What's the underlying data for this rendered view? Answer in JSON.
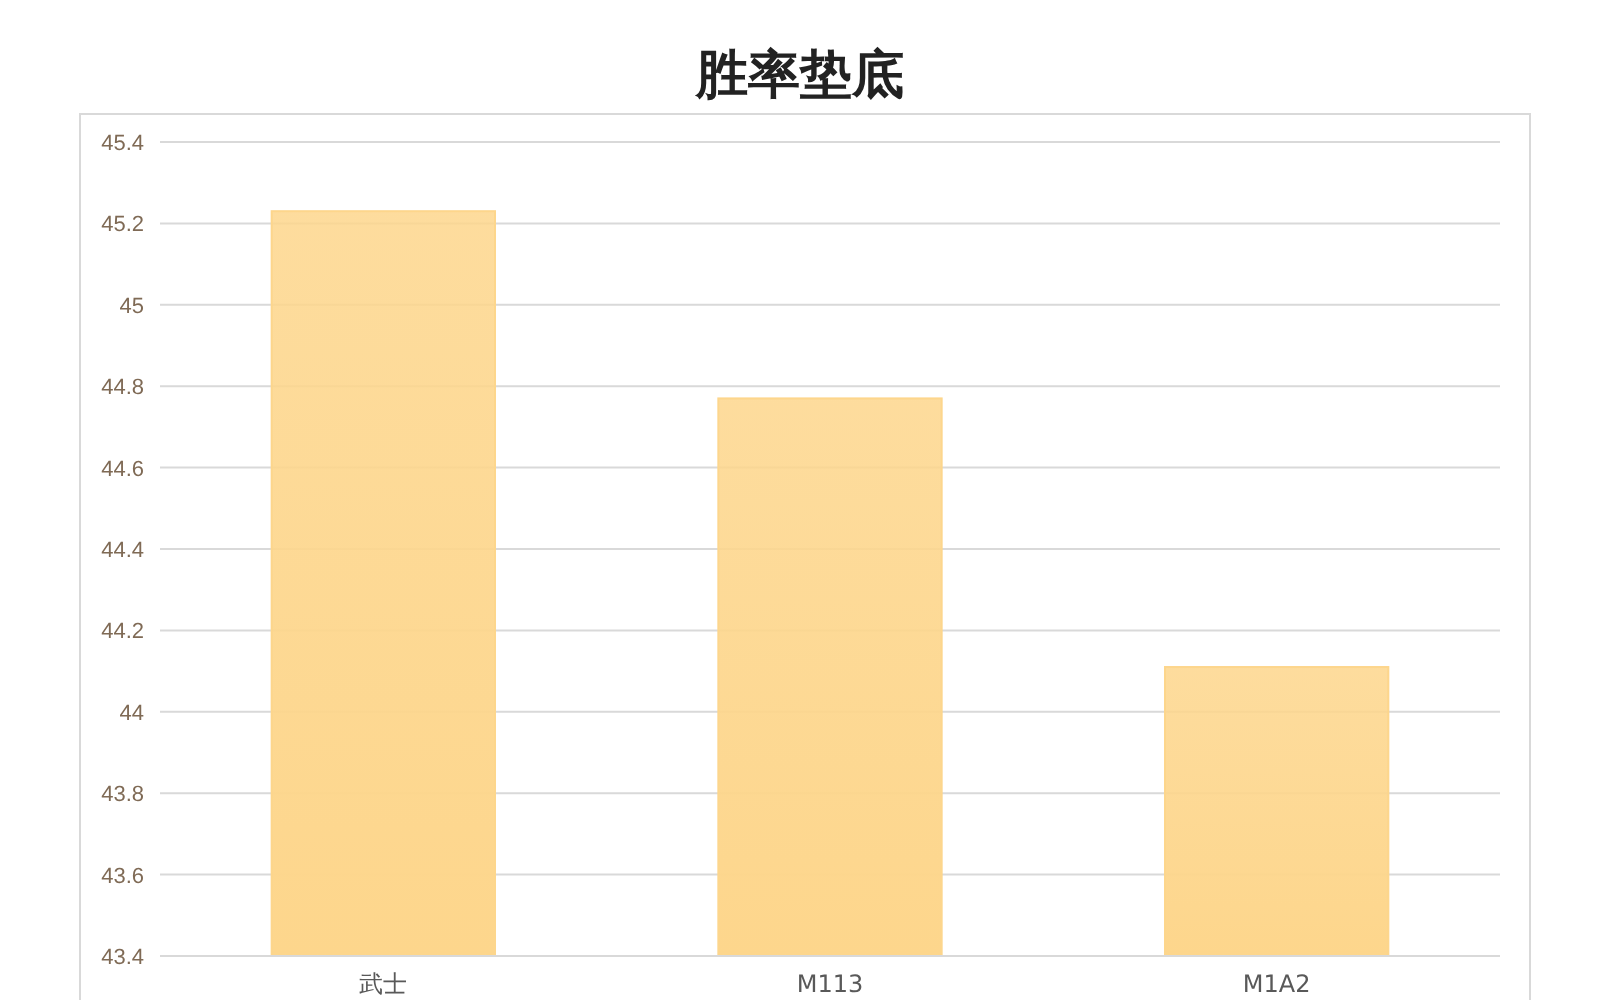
{
  "chart_data": {
    "type": "bar",
    "title": "胜率垫底",
    "categories": [
      "武士",
      "M113",
      "M1A2"
    ],
    "values": [
      45.23,
      44.77,
      44.11
    ],
    "color": "#fdd68c",
    "ylim": [
      43.4,
      45.4
    ],
    "yticks": [
      43.4,
      43.6,
      43.8,
      44,
      44.2,
      44.4,
      44.6,
      44.8,
      45,
      45.2,
      45.4
    ],
    "grid": "y"
  }
}
